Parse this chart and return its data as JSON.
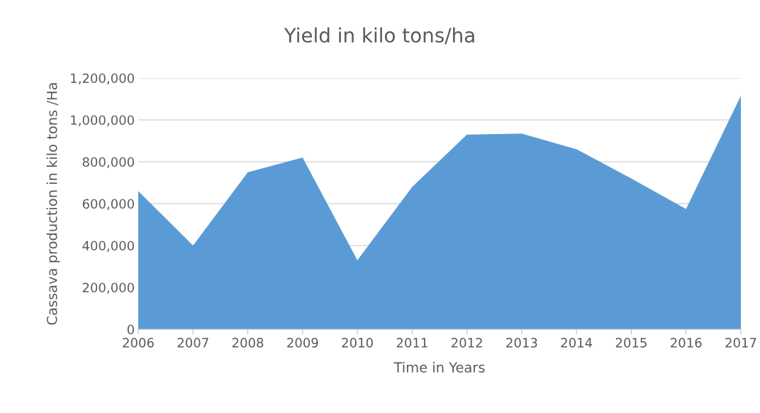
{
  "chart_data": {
    "type": "area",
    "title": "Yield in kilo tons/ha",
    "xlabel": "Time in Years",
    "ylabel": "Cassava production in kilo tons /Ha",
    "categories": [
      "2006",
      "2007",
      "2008",
      "2009",
      "2010",
      "2011",
      "2012",
      "2013",
      "2014",
      "2015",
      "2016",
      "2017"
    ],
    "series": [
      {
        "color": "#5b9bd5",
        "values": [
          660000,
          400000,
          750000,
          820000,
          330000,
          680000,
          930000,
          935000,
          860000,
          720000,
          575000,
          1115000
        ]
      }
    ],
    "ylim": [
      0,
      1200000
    ],
    "yticks": [
      {
        "value": 0,
        "label": "0"
      },
      {
        "value": 200000,
        "label": "200,000"
      },
      {
        "value": 400000,
        "label": "400,000"
      },
      {
        "value": 600000,
        "label": "600,000"
      },
      {
        "value": 800000,
        "label": "800,000"
      },
      {
        "value": 1000000,
        "label": "1,000,000"
      },
      {
        "value": 1200000,
        "label": "1,200,000"
      }
    ],
    "grid": "y"
  }
}
